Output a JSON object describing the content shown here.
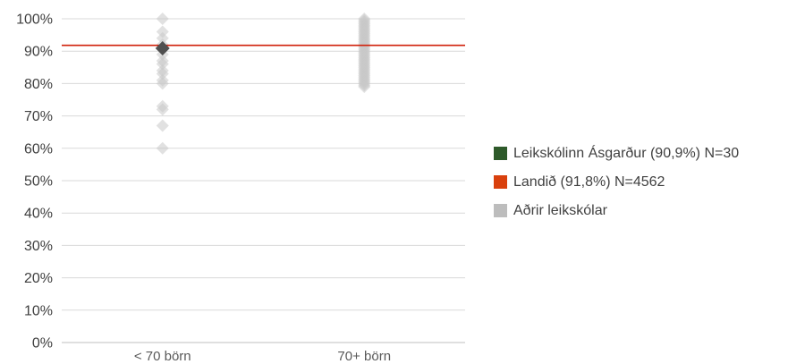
{
  "chart_data": {
    "type": "scatter",
    "categories": [
      "< 70 börn",
      "70+ börn"
    ],
    "y_ticks": [
      "0%",
      "10%",
      "20%",
      "30%",
      "40%",
      "50%",
      "60%",
      "70%",
      "80%",
      "90%",
      "100%"
    ],
    "ylim": [
      0,
      100
    ],
    "grid": true,
    "legend_position": "right",
    "reference_line": {
      "name": "Landið (91,8%) N=4562",
      "value": 91.8,
      "color": "#d0200a"
    },
    "highlight": {
      "name": "Leikskólinn Ásgarður (90,9%) N=30",
      "category": "< 70 börn",
      "value": 90.9,
      "color": "#505050"
    },
    "series": [
      {
        "name": "Aðrir leikskólar",
        "color": "#c8c8c8",
        "category": "< 70 börn",
        "values": [
          100,
          96,
          94,
          92,
          91,
          89,
          87,
          86,
          84,
          83,
          81,
          80,
          73,
          72,
          67,
          60
        ]
      },
      {
        "name": "Aðrir leikskólar",
        "color": "#c8c8c8",
        "category": "70+ börn",
        "values": [
          100,
          99.5,
          99,
          98.5,
          98,
          97.5,
          97,
          96.5,
          96,
          95.5,
          95,
          94.5,
          94,
          93.5,
          93,
          92.5,
          92,
          91.5,
          91,
          90.5,
          90,
          89.5,
          89,
          88.5,
          88,
          87.5,
          87,
          86.5,
          86,
          85.5,
          85,
          84.5,
          84,
          83.5,
          83,
          82.5,
          82,
          81.5,
          81,
          80.5,
          80,
          79.5,
          79
        ]
      }
    ],
    "legend": [
      {
        "label": "Leikskólinn Ásgarður (90,9%) N=30",
        "color": "#2e5a2a"
      },
      {
        "label": "Landið (91,8%) N=4562",
        "color": "#d9400d"
      },
      {
        "label": "Aðrir leikskólar",
        "color": "#bdbdbd"
      }
    ]
  }
}
